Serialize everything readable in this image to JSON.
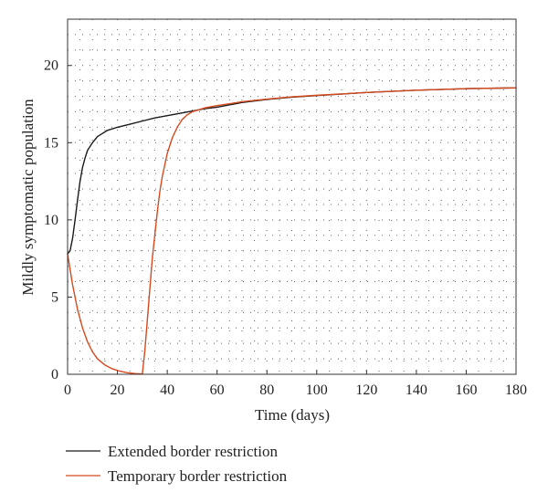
{
  "chart_data": {
    "type": "line",
    "xlabel": "Time (days)",
    "ylabel": "Mildly symptomatic population",
    "xlim": [
      0,
      180
    ],
    "ylim": [
      0,
      23
    ],
    "x_ticks": [
      0,
      20,
      40,
      60,
      80,
      100,
      120,
      140,
      160,
      180
    ],
    "y_ticks": [
      0,
      5,
      10,
      15,
      20
    ],
    "grid": "dotted",
    "legend_position": "bottom",
    "series": [
      {
        "name": "Extended border restriction",
        "color": "#1a1a1a",
        "x": [
          0,
          1,
          2,
          3,
          4,
          5,
          6,
          7,
          8,
          10,
          12,
          14,
          16,
          20,
          25,
          30,
          35,
          40,
          45,
          50,
          55,
          60,
          70,
          80,
          90,
          100,
          120,
          140,
          160,
          180
        ],
        "y": [
          7.8,
          8.0,
          8.8,
          10.0,
          11.3,
          12.5,
          13.4,
          14.0,
          14.5,
          15.0,
          15.4,
          15.6,
          15.8,
          16.0,
          16.2,
          16.4,
          16.6,
          16.75,
          16.9,
          17.05,
          17.2,
          17.3,
          17.6,
          17.8,
          17.95,
          18.05,
          18.25,
          18.4,
          18.5,
          18.55
        ]
      },
      {
        "name": "Temporary border restriction",
        "color": "#d64a1e",
        "x": [
          0,
          2,
          4,
          6,
          8,
          10,
          12,
          15,
          18,
          21,
          24,
          27,
          30,
          31,
          32,
          33,
          34,
          35,
          36,
          37,
          38,
          40,
          42,
          44,
          46,
          48,
          50,
          52,
          55,
          60,
          70,
          80,
          90,
          100,
          120,
          140,
          160,
          180
        ],
        "y": [
          7.8,
          5.8,
          4.2,
          3.0,
          2.1,
          1.45,
          1.0,
          0.6,
          0.35,
          0.2,
          0.1,
          0.05,
          0.02,
          1.5,
          3.5,
          5.5,
          7.5,
          9.0,
          10.5,
          11.8,
          12.8,
          14.3,
          15.3,
          16.0,
          16.5,
          16.8,
          17.0,
          17.1,
          17.25,
          17.4,
          17.65,
          17.82,
          17.97,
          18.07,
          18.25,
          18.4,
          18.5,
          18.55
        ]
      }
    ]
  }
}
